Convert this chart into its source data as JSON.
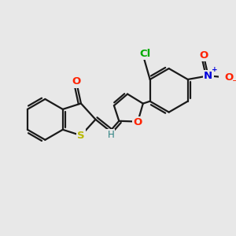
{
  "bg_color": "#e8e8e8",
  "bond_color": "#1a1a1a",
  "bond_width": 1.6,
  "figsize": [
    3.0,
    3.0
  ],
  "dpi": 100,
  "xlim": [
    0,
    300
  ],
  "ylim": [
    0,
    300
  ]
}
